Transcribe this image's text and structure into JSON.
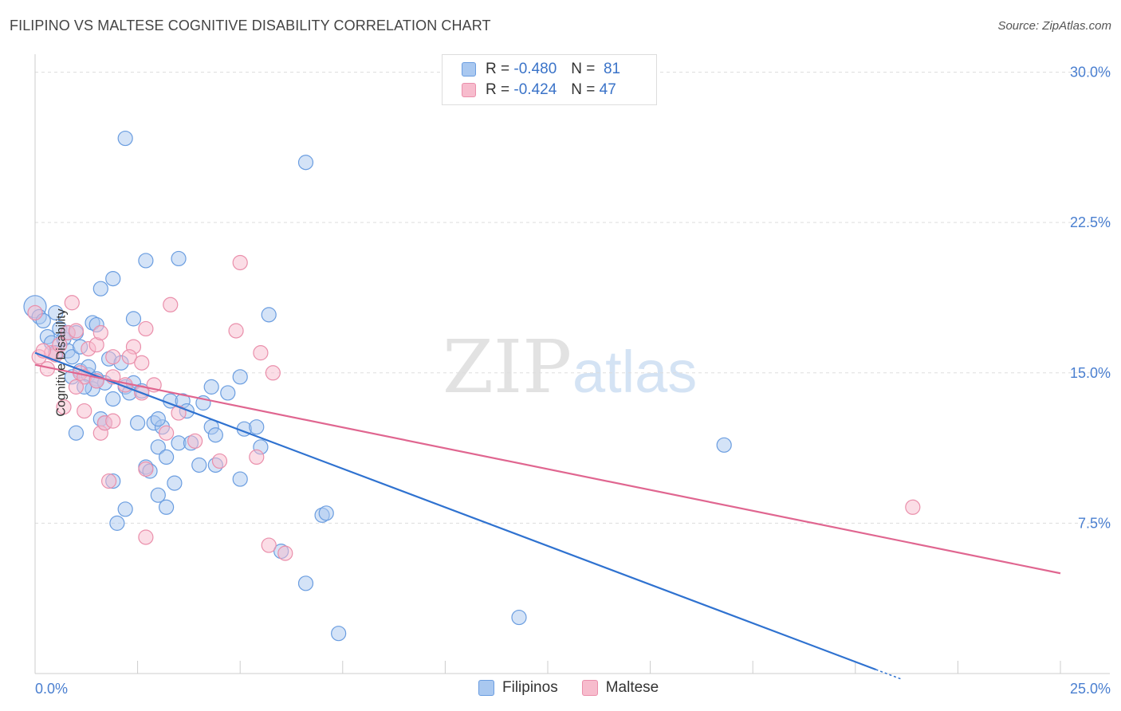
{
  "header": {
    "title": "FILIPINO VS MALTESE COGNITIVE DISABILITY CORRELATION CHART",
    "source": "Source: ZipAtlas.com"
  },
  "watermark": {
    "part1": "ZIP",
    "part2": "atlas"
  },
  "legend": {
    "rows": [
      {
        "r_label": "R =",
        "r_value": "-0.480",
        "n_label": "N =",
        "n_value": "81"
      },
      {
        "r_label": "R =",
        "r_value": "-0.424",
        "n_label": "N =",
        "n_value": "47"
      }
    ],
    "bottom": [
      "Filipinos",
      "Maltese"
    ]
  },
  "colors": {
    "filipinos_fill": "#a9c8f0",
    "filipinos_stroke": "#6a9de0",
    "filipinos_line": "#2f72d0",
    "maltese_fill": "#f7bccd",
    "maltese_stroke": "#ea8fab",
    "maltese_line": "#e06690",
    "tick_label": "#4a7fd0",
    "grid": "#dddddd"
  },
  "chart_data": {
    "type": "scatter",
    "title": "FILIPINO VS MALTESE COGNITIVE DISABILITY CORRELATION CHART",
    "xlabel": "",
    "ylabel": "Cognitive Disability",
    "xlim": [
      0,
      25
    ],
    "ylim": [
      0,
      30.5
    ],
    "x_tick_labels": [
      {
        "value": 0,
        "label": "0.0%"
      },
      {
        "value": 25,
        "label": "25.0%"
      }
    ],
    "y_ticks": [
      {
        "value": 7.5,
        "label": "7.5%"
      },
      {
        "value": 15,
        "label": "15.0%"
      },
      {
        "value": 22.5,
        "label": "22.5%"
      },
      {
        "value": 30,
        "label": "30.0%"
      }
    ],
    "grid": "horizontal dashed",
    "legend_placement": "top-center",
    "series": [
      {
        "name": "Filipinos",
        "r": -0.48,
        "n": 81,
        "trend": {
          "x0": 0,
          "y0": 16.0,
          "x1": 20.5,
          "y1": 0.2
        },
        "points": [
          [
            0.0,
            18.3
          ],
          [
            0.1,
            17.8
          ],
          [
            0.2,
            17.6
          ],
          [
            0.5,
            18.0
          ],
          [
            0.3,
            16.8
          ],
          [
            0.6,
            17.2
          ],
          [
            0.4,
            16.5
          ],
          [
            0.7,
            16.7
          ],
          [
            1.0,
            17.0
          ],
          [
            0.8,
            16.1
          ],
          [
            0.5,
            16.0
          ],
          [
            0.9,
            15.8
          ],
          [
            1.1,
            15.1
          ],
          [
            1.3,
            14.9
          ],
          [
            0.9,
            14.8
          ],
          [
            1.5,
            14.7
          ],
          [
            1.4,
            14.2
          ],
          [
            1.7,
            14.5
          ],
          [
            1.2,
            14.3
          ],
          [
            1.8,
            15.7
          ],
          [
            2.1,
            15.5
          ],
          [
            1.0,
            12.0
          ],
          [
            1.6,
            12.7
          ],
          [
            1.7,
            12.5
          ],
          [
            1.9,
            13.7
          ],
          [
            2.2,
            14.3
          ],
          [
            2.4,
            14.5
          ],
          [
            2.3,
            14.0
          ],
          [
            2.5,
            12.5
          ],
          [
            2.9,
            12.5
          ],
          [
            3.1,
            12.3
          ],
          [
            3.3,
            13.6
          ],
          [
            3.6,
            13.6
          ],
          [
            3.7,
            13.1
          ],
          [
            4.1,
            13.5
          ],
          [
            4.3,
            12.3
          ],
          [
            4.4,
            11.9
          ],
          [
            4.7,
            14.0
          ],
          [
            4.3,
            14.3
          ],
          [
            5.0,
            14.8
          ],
          [
            5.1,
            12.2
          ],
          [
            5.4,
            12.3
          ],
          [
            5.5,
            11.3
          ],
          [
            3.0,
            11.3
          ],
          [
            3.5,
            11.5
          ],
          [
            3.8,
            11.5
          ],
          [
            3.2,
            10.8
          ],
          [
            2.7,
            10.3
          ],
          [
            2.8,
            10.1
          ],
          [
            4.0,
            10.4
          ],
          [
            4.4,
            10.4
          ],
          [
            5.0,
            9.7
          ],
          [
            1.9,
            9.6
          ],
          [
            3.4,
            9.5
          ],
          [
            3.0,
            8.9
          ],
          [
            3.2,
            8.3
          ],
          [
            2.2,
            8.2
          ],
          [
            2.0,
            7.5
          ],
          [
            1.6,
            19.2
          ],
          [
            1.9,
            19.7
          ],
          [
            2.4,
            17.7
          ],
          [
            1.4,
            17.5
          ],
          [
            1.5,
            17.4
          ],
          [
            2.7,
            20.6
          ],
          [
            3.5,
            20.7
          ],
          [
            5.7,
            17.9
          ],
          [
            2.2,
            26.7
          ],
          [
            6.6,
            25.5
          ],
          [
            7.0,
            7.9
          ],
          [
            7.1,
            8.0
          ],
          [
            6.0,
            6.1
          ],
          [
            6.6,
            4.5
          ],
          [
            7.4,
            2.0
          ],
          [
            11.8,
            2.8
          ],
          [
            16.8,
            11.4
          ],
          [
            3.0,
            12.7
          ],
          [
            1.5,
            14.6
          ],
          [
            0.8,
            17.0
          ],
          [
            1.1,
            16.3
          ],
          [
            2.6,
            14.1
          ],
          [
            1.3,
            15.3
          ]
        ]
      },
      {
        "name": "Maltese",
        "r": -0.424,
        "n": 47,
        "trend": {
          "x0": 0,
          "y0": 15.4,
          "x1": 25,
          "y1": 5.0
        },
        "points": [
          [
            0.0,
            18.0
          ],
          [
            0.1,
            15.8
          ],
          [
            0.3,
            15.2
          ],
          [
            0.5,
            15.9
          ],
          [
            0.4,
            16.0
          ],
          [
            0.8,
            17.0
          ],
          [
            0.9,
            18.5
          ],
          [
            1.0,
            17.1
          ],
          [
            1.3,
            16.2
          ],
          [
            1.5,
            16.4
          ],
          [
            1.1,
            15.0
          ],
          [
            1.2,
            14.8
          ],
          [
            1.0,
            14.3
          ],
          [
            0.7,
            13.3
          ],
          [
            1.2,
            13.1
          ],
          [
            1.5,
            14.6
          ],
          [
            1.9,
            15.8
          ],
          [
            2.4,
            16.3
          ],
          [
            2.3,
            15.8
          ],
          [
            2.6,
            15.5
          ],
          [
            1.9,
            14.8
          ],
          [
            2.2,
            14.4
          ],
          [
            2.6,
            14.0
          ],
          [
            2.9,
            14.4
          ],
          [
            1.6,
            12.0
          ],
          [
            1.7,
            12.5
          ],
          [
            1.9,
            12.6
          ],
          [
            2.7,
            17.2
          ],
          [
            3.3,
            18.4
          ],
          [
            4.9,
            17.1
          ],
          [
            5.5,
            16.0
          ],
          [
            5.8,
            15.0
          ],
          [
            5.0,
            20.5
          ],
          [
            3.5,
            13.0
          ],
          [
            3.2,
            12.0
          ],
          [
            3.9,
            11.6
          ],
          [
            4.5,
            10.6
          ],
          [
            5.4,
            10.8
          ],
          [
            1.8,
            9.6
          ],
          [
            2.7,
            10.2
          ],
          [
            2.7,
            6.8
          ],
          [
            5.7,
            6.4
          ],
          [
            6.1,
            6.0
          ],
          [
            21.4,
            8.3
          ],
          [
            0.6,
            16.4
          ],
          [
            1.6,
            17.0
          ],
          [
            0.2,
            16.1
          ]
        ]
      }
    ]
  }
}
